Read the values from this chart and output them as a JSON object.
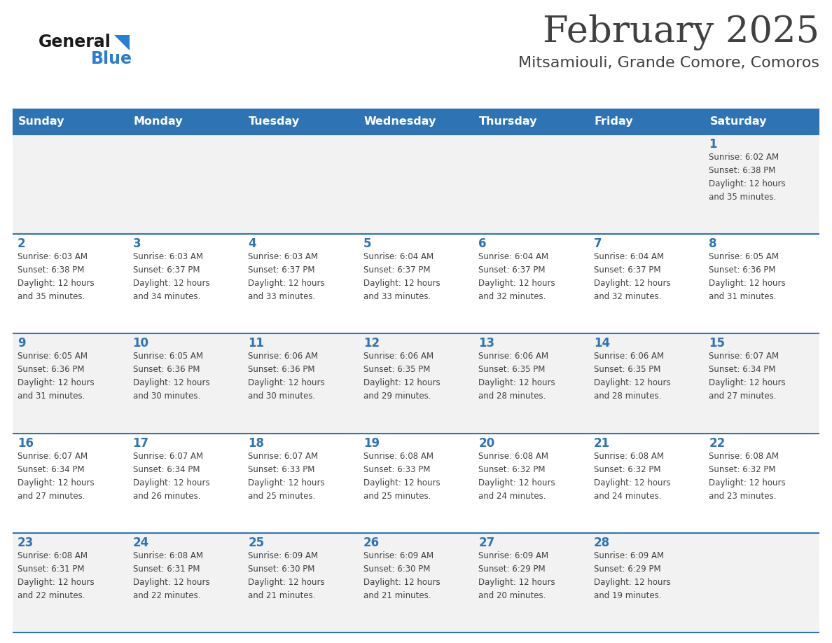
{
  "title": "February 2025",
  "subtitle": "Mitsamiouli, Grande Comore, Comoros",
  "days_of_week": [
    "Sunday",
    "Monday",
    "Tuesday",
    "Wednesday",
    "Thursday",
    "Friday",
    "Saturday"
  ],
  "header_bg": "#2E74B5",
  "header_text": "#FFFFFF",
  "row_bg_odd": "#F2F2F2",
  "row_bg_even": "#FFFFFF",
  "separator_color": "#2E74B5",
  "day_number_color": "#2E74B5",
  "text_color": "#404040",
  "title_color": "#404040",
  "logo_general_color": "#1A1A1A",
  "logo_blue_color": "#2B7CD3",
  "calendar_data": [
    [
      {
        "day": "",
        "info": ""
      },
      {
        "day": "",
        "info": ""
      },
      {
        "day": "",
        "info": ""
      },
      {
        "day": "",
        "info": ""
      },
      {
        "day": "",
        "info": ""
      },
      {
        "day": "",
        "info": ""
      },
      {
        "day": "1",
        "info": "Sunrise: 6:02 AM\nSunset: 6:38 PM\nDaylight: 12 hours\nand 35 minutes."
      }
    ],
    [
      {
        "day": "2",
        "info": "Sunrise: 6:03 AM\nSunset: 6:38 PM\nDaylight: 12 hours\nand 35 minutes."
      },
      {
        "day": "3",
        "info": "Sunrise: 6:03 AM\nSunset: 6:37 PM\nDaylight: 12 hours\nand 34 minutes."
      },
      {
        "day": "4",
        "info": "Sunrise: 6:03 AM\nSunset: 6:37 PM\nDaylight: 12 hours\nand 33 minutes."
      },
      {
        "day": "5",
        "info": "Sunrise: 6:04 AM\nSunset: 6:37 PM\nDaylight: 12 hours\nand 33 minutes."
      },
      {
        "day": "6",
        "info": "Sunrise: 6:04 AM\nSunset: 6:37 PM\nDaylight: 12 hours\nand 32 minutes."
      },
      {
        "day": "7",
        "info": "Sunrise: 6:04 AM\nSunset: 6:37 PM\nDaylight: 12 hours\nand 32 minutes."
      },
      {
        "day": "8",
        "info": "Sunrise: 6:05 AM\nSunset: 6:36 PM\nDaylight: 12 hours\nand 31 minutes."
      }
    ],
    [
      {
        "day": "9",
        "info": "Sunrise: 6:05 AM\nSunset: 6:36 PM\nDaylight: 12 hours\nand 31 minutes."
      },
      {
        "day": "10",
        "info": "Sunrise: 6:05 AM\nSunset: 6:36 PM\nDaylight: 12 hours\nand 30 minutes."
      },
      {
        "day": "11",
        "info": "Sunrise: 6:06 AM\nSunset: 6:36 PM\nDaylight: 12 hours\nand 30 minutes."
      },
      {
        "day": "12",
        "info": "Sunrise: 6:06 AM\nSunset: 6:35 PM\nDaylight: 12 hours\nand 29 minutes."
      },
      {
        "day": "13",
        "info": "Sunrise: 6:06 AM\nSunset: 6:35 PM\nDaylight: 12 hours\nand 28 minutes."
      },
      {
        "day": "14",
        "info": "Sunrise: 6:06 AM\nSunset: 6:35 PM\nDaylight: 12 hours\nand 28 minutes."
      },
      {
        "day": "15",
        "info": "Sunrise: 6:07 AM\nSunset: 6:34 PM\nDaylight: 12 hours\nand 27 minutes."
      }
    ],
    [
      {
        "day": "16",
        "info": "Sunrise: 6:07 AM\nSunset: 6:34 PM\nDaylight: 12 hours\nand 27 minutes."
      },
      {
        "day": "17",
        "info": "Sunrise: 6:07 AM\nSunset: 6:34 PM\nDaylight: 12 hours\nand 26 minutes."
      },
      {
        "day": "18",
        "info": "Sunrise: 6:07 AM\nSunset: 6:33 PM\nDaylight: 12 hours\nand 25 minutes."
      },
      {
        "day": "19",
        "info": "Sunrise: 6:08 AM\nSunset: 6:33 PM\nDaylight: 12 hours\nand 25 minutes."
      },
      {
        "day": "20",
        "info": "Sunrise: 6:08 AM\nSunset: 6:32 PM\nDaylight: 12 hours\nand 24 minutes."
      },
      {
        "day": "21",
        "info": "Sunrise: 6:08 AM\nSunset: 6:32 PM\nDaylight: 12 hours\nand 24 minutes."
      },
      {
        "day": "22",
        "info": "Sunrise: 6:08 AM\nSunset: 6:32 PM\nDaylight: 12 hours\nand 23 minutes."
      }
    ],
    [
      {
        "day": "23",
        "info": "Sunrise: 6:08 AM\nSunset: 6:31 PM\nDaylight: 12 hours\nand 22 minutes."
      },
      {
        "day": "24",
        "info": "Sunrise: 6:08 AM\nSunset: 6:31 PM\nDaylight: 12 hours\nand 22 minutes."
      },
      {
        "day": "25",
        "info": "Sunrise: 6:09 AM\nSunset: 6:30 PM\nDaylight: 12 hours\nand 21 minutes."
      },
      {
        "day": "26",
        "info": "Sunrise: 6:09 AM\nSunset: 6:30 PM\nDaylight: 12 hours\nand 21 minutes."
      },
      {
        "day": "27",
        "info": "Sunrise: 6:09 AM\nSunset: 6:29 PM\nDaylight: 12 hours\nand 20 minutes."
      },
      {
        "day": "28",
        "info": "Sunrise: 6:09 AM\nSunset: 6:29 PM\nDaylight: 12 hours\nand 19 minutes."
      },
      {
        "day": "",
        "info": ""
      }
    ]
  ]
}
